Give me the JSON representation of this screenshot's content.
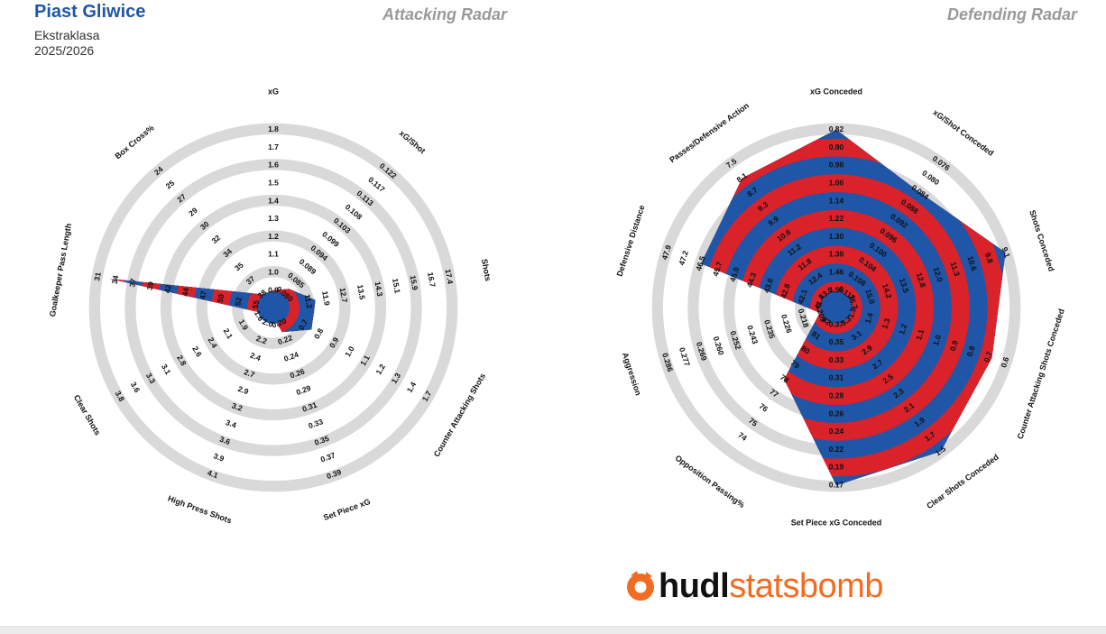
{
  "header": {
    "team": "Piast Gliwice",
    "league": "Ekstraklasa",
    "season": "2025/2026",
    "attacking_title": "Attacking Radar",
    "defending_title": "Defending Radar"
  },
  "logo": {
    "brand_bold": "hudl",
    "brand_light": "statsbomb",
    "icon": "hudl-logo-icon"
  },
  "colors": {
    "series_blue": "#1f56a8",
    "series_red": "#d9222a",
    "ring_gray": "#d9d9d9"
  },
  "chart_data": [
    {
      "type": "radar",
      "title": "Attacking Radar",
      "axes": [
        {
          "label": "xG",
          "ticks": [
            "0.9",
            "1.0",
            "1.1",
            "1.2",
            "1.3",
            "1.4",
            "1.5",
            "1.6",
            "1.7",
            "1.8"
          ],
          "value": 0.9
        },
        {
          "label": "xG/Shot",
          "ticks": [
            "0.080",
            "0.085",
            "0.089",
            "0.094",
            "0.099",
            "0.103",
            "0.108",
            "0.113",
            "0.117",
            "0.122"
          ],
          "value": 0.082
        },
        {
          "label": "Shots",
          "ticks": [
            "11.2",
            "11.9",
            "12.7",
            "13.5",
            "14.3",
            "15.1",
            "15.9",
            "16.7",
            "17.4"
          ],
          "tick_start_ring": 1,
          "value": 11.5
        },
        {
          "label": "Counter Attacking Shots",
          "ticks": [
            "0.7",
            "0.8",
            "0.9",
            "1.0",
            "1.1",
            "1.2",
            "1.3",
            "1.4",
            "1.7"
          ],
          "tick_start_ring": 1,
          "value": 0.75
        },
        {
          "label": "Set Piece xG",
          "ticks": [
            "0.20",
            "0.22",
            "0.24",
            "0.26",
            "0.29",
            "0.31",
            "0.33",
            "0.35",
            "0.37",
            "0.39"
          ],
          "value": 0.21
        },
        {
          "label": "High Press Shots",
          "ticks": [
            "2.0",
            "2.2",
            "2.4",
            "2.7",
            "2.9",
            "3.2",
            "3.4",
            "3.6",
            "3.9",
            "4.1"
          ],
          "value": 1.6
        },
        {
          "label": "Clear Shots",
          "ticks": [
            "1.6",
            "1.9",
            "2.1",
            "2.4",
            "2.6",
            "2.8",
            "3.1",
            "3.3",
            "3.6",
            "3.8"
          ],
          "value": 1.5
        },
        {
          "label": "Goalkeeper Pass Length",
          "ticks": [
            "55",
            "52",
            "50",
            "47",
            "44",
            "42",
            "39",
            "37",
            "34",
            "31"
          ],
          "value": 33
        },
        {
          "label": "Box Cross%",
          "ticks": [
            "38",
            "37",
            "35",
            "34",
            "32",
            "30",
            "29",
            "27",
            "25",
            "24"
          ],
          "value": 38
        }
      ]
    },
    {
      "type": "radar",
      "title": "Defending Radar",
      "axes": [
        {
          "label": "xG Conceded",
          "ticks": [
            "1.55",
            "1.46",
            "1.38",
            "1.30",
            "1.22",
            "1.14",
            "1.06",
            "0.98",
            "0.90",
            "0.82"
          ],
          "value": 0.82
        },
        {
          "label": "xG/Shot Conceded",
          "ticks": [
            "0.112",
            "0.108",
            "0.104",
            "0.100",
            "0.096",
            "0.092",
            "0.088",
            "0.084",
            "0.080",
            "0.076"
          ],
          "value": 0.084
        },
        {
          "label": "Shots Conceded",
          "ticks": [
            "15.7",
            "15.0",
            "14.2",
            "13.5",
            "12.8",
            "12.0",
            "11.3",
            "10.6",
            "9.8",
            "9.1"
          ],
          "value": 9.1
        },
        {
          "label": "Counter Attacking Shots Conceded",
          "ticks": [
            "1.5",
            "1.4",
            "1.3",
            "1.2",
            "1.1",
            "1.0",
            "0.9",
            "0.8",
            "0.7",
            "0.6"
          ],
          "value": 0.68
        },
        {
          "label": "Clear Shots Conceded",
          "ticks": [
            "3.3",
            "3.1",
            "2.9",
            "2.7",
            "2.5",
            "2.3",
            "2.1",
            "1.9",
            "1.7",
            "1.5"
          ],
          "value": 1.5
        },
        {
          "label": "Set Piece xG Conceded",
          "ticks": [
            "0.37",
            "0.35",
            "0.33",
            "0.31",
            "0.28",
            "0.26",
            "0.24",
            "0.22",
            "0.19",
            "0.17"
          ],
          "value": 0.17
        },
        {
          "label": "Opposition Passing%",
          "ticks": [
            "82",
            "81",
            "80",
            "79",
            "78",
            "77",
            "76",
            "75",
            "74"
          ],
          "value": 78
        },
        {
          "label": "Aggression",
          "ticks": [
            "0.209",
            "0.218",
            "0.226",
            "0.235",
            "0.243",
            "0.252",
            "0.260",
            "0.269",
            "0.277",
            "0.286"
          ],
          "value": 0.209
        },
        {
          "label": "Defensive Distance",
          "ticks": [
            "41.4",
            "42.1",
            "42.8",
            "43.6",
            "44.3",
            "45.0",
            "45.7",
            "46.5",
            "47.2",
            "47.9"
          ],
          "value": 46.5
        },
        {
          "label": "Passes/Defensive Action",
          "ticks": [
            "13.0",
            "12.4",
            "11.8",
            "11.2",
            "10.6",
            "9.9",
            "9.3",
            "8.7",
            "8.1",
            "7.5"
          ],
          "value": 8.1
        }
      ]
    }
  ]
}
